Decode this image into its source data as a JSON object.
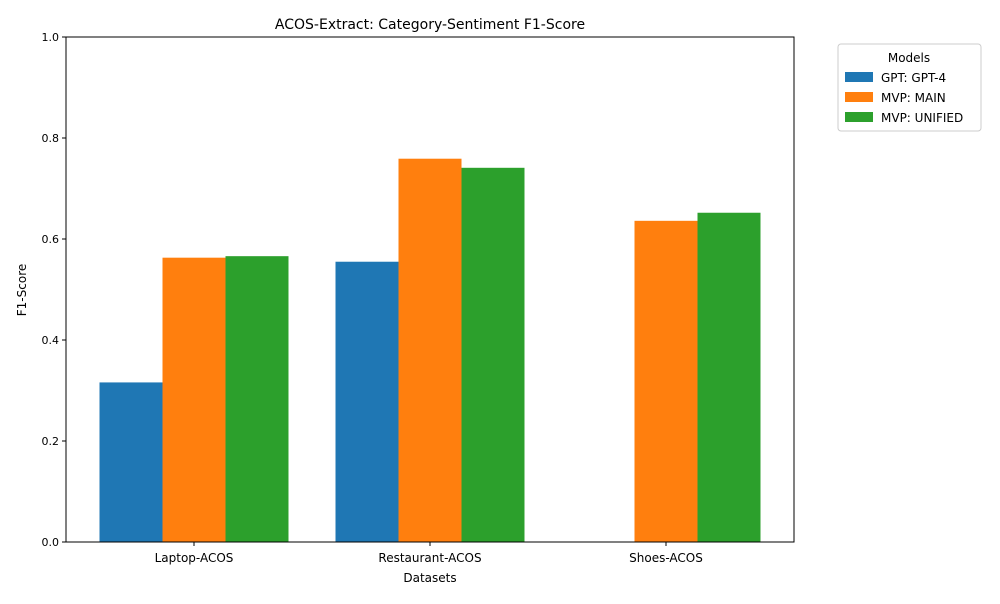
{
  "chart_data": {
    "type": "bar",
    "title": "ACOS-Extract: Category-Sentiment F1-Score",
    "xlabel": "Datasets",
    "ylabel": "F1-Score",
    "ylim": [
      0,
      1.0
    ],
    "yticks": [
      "0.0",
      "0.2",
      "0.4",
      "0.6",
      "0.8",
      "1.0"
    ],
    "yticks_values": [
      0,
      0.2,
      0.4,
      0.6,
      0.8,
      1.0
    ],
    "grid": false,
    "legend_title": "Models",
    "legend_position": "outside-top-right",
    "categories": [
      "Laptop-ACOS",
      "Restaurant-ACOS",
      "Shoes-ACOS"
    ],
    "series": [
      {
        "name": "GPT: GPT-4",
        "color": "#1f77b4",
        "values": [
          0.316,
          0.555,
          null
        ]
      },
      {
        "name": "MVP: MAIN",
        "color": "#ff7f0e",
        "values": [
          0.563,
          0.759,
          0.636
        ]
      },
      {
        "name": "MVP: UNIFIED",
        "color": "#2ca02c",
        "values": [
          0.566,
          0.741,
          0.652
        ]
      }
    ]
  }
}
